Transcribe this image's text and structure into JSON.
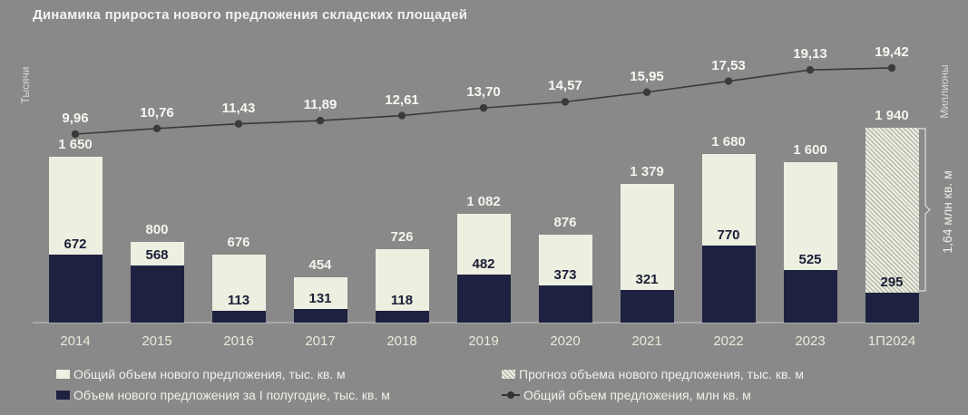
{
  "title": "Динамика прироста нового предложения складских площадей",
  "axis": {
    "left": "Тысячи",
    "right": "Миллионы"
  },
  "chart_data": {
    "type": "combo: stacked bar + line",
    "title": "Динамика прироста нового предложения складских площадей",
    "categories": [
      "2014",
      "2015",
      "2016",
      "2017",
      "2018",
      "2019",
      "2020",
      "2021",
      "2022",
      "2023",
      "1П2024"
    ],
    "series": [
      {
        "name": "Объем нового предложения за I полугодие, тыс. кв. м",
        "role": "bar-bottom-segment",
        "color": "#1e2240",
        "values": [
          672,
          568,
          113,
          131,
          118,
          482,
          373,
          321,
          770,
          525,
          295
        ],
        "labels": [
          "672",
          "568",
          "113",
          "131",
          "118",
          "482",
          "373",
          "321",
          "770",
          "525",
          "295"
        ]
      },
      {
        "name": "Общий объем нового предложения, тыс. кв. м",
        "role": "bar-total",
        "color": "#edefe0",
        "values": [
          1650,
          800,
          676,
          454,
          726,
          1082,
          876,
          1379,
          1680,
          1600,
          null
        ],
        "labels": [
          "1 650",
          "800",
          "676",
          "454",
          "726",
          "1 082",
          "876",
          "1 379",
          "1 680",
          "1 600",
          null
        ]
      },
      {
        "name": "Прогноз объема нового предложения, тыс. кв. м",
        "role": "bar-total-forecast-hatched",
        "color": "hatched #ebeddd / gray",
        "values": [
          null,
          null,
          null,
          null,
          null,
          null,
          null,
          null,
          null,
          null,
          1940
        ],
        "labels": [
          null,
          null,
          null,
          null,
          null,
          null,
          null,
          null,
          null,
          null,
          "1 940"
        ]
      },
      {
        "name": "Общий объем предложения, млн кв. м",
        "role": "line",
        "color": "#3a3a3a",
        "values": [
          9.96,
          10.76,
          11.43,
          11.89,
          12.61,
          13.7,
          14.57,
          15.95,
          17.53,
          19.13,
          19.42
        ],
        "labels": [
          "9,96",
          "10,76",
          "11,43",
          "11,89",
          "12,61",
          "13,70",
          "14,57",
          "15,95",
          "17,53",
          "19,13",
          "19,42"
        ]
      }
    ],
    "left_axis_unit": "Тысячи",
    "right_axis_unit": "Миллионы",
    "annotations": [
      {
        "text": "1,64 млн кв. м",
        "target": "bracket on forecast segment of 1П2024 (1 940 − 295)"
      }
    ],
    "legend_position": "bottom",
    "gridlines": false
  },
  "legend": {
    "items": [
      {
        "label": "Общий объем нового предложения, тыс. кв. м",
        "marker": "light-square"
      },
      {
        "label": "Объем нового предложения за I полугодие, тыс. кв. м",
        "marker": "dark-square"
      },
      {
        "label": "Прогноз объема нового предложения, тыс. кв. м",
        "marker": "hatched-square"
      },
      {
        "label": "Общий объем предложения, млн кв. м",
        "marker": "line-dot"
      }
    ]
  },
  "colors": {
    "background": "#898989",
    "bar_dark": "#1e2240",
    "bar_light": "#edefe0",
    "line": "#3a3a3a",
    "text_light": "#f2f2ee"
  }
}
